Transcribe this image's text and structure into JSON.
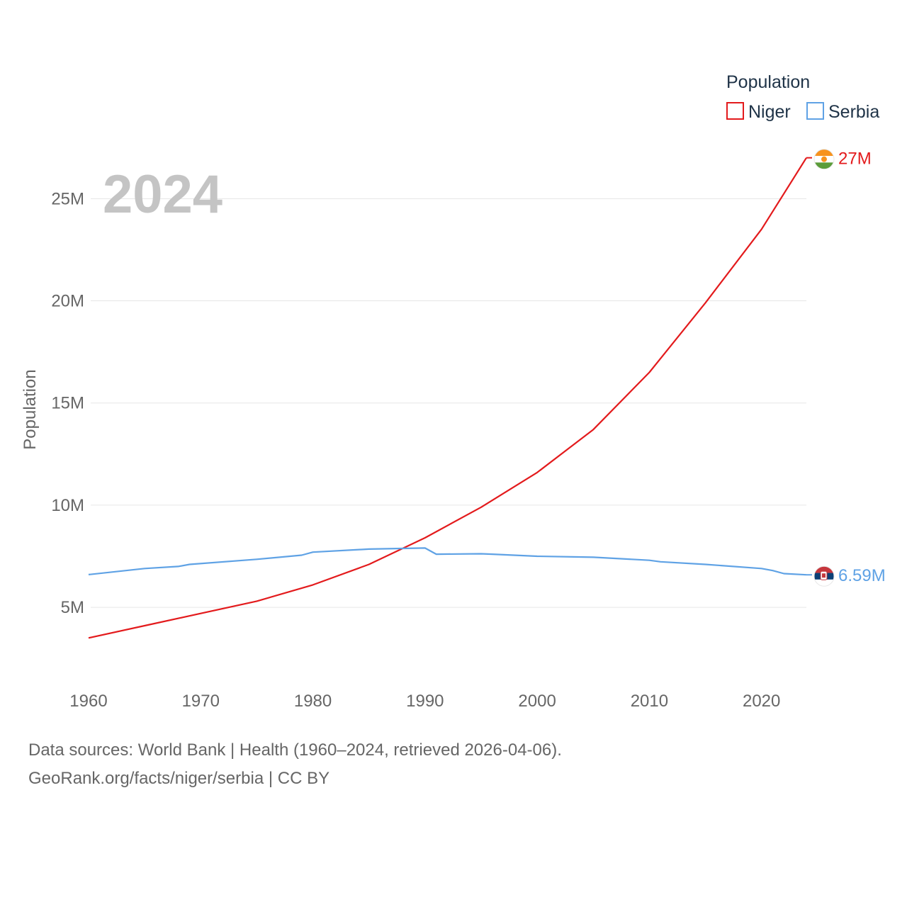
{
  "chart_data": {
    "type": "line",
    "title": "2024",
    "ylabel": "Population",
    "xlabel": "",
    "xlim": [
      1960,
      2024
    ],
    "ylim": [
      1500000,
      29000000
    ],
    "x_ticks": [
      1960,
      1970,
      1980,
      1990,
      2000,
      2010,
      2020
    ],
    "x_tick_labels": [
      "1960",
      "1970",
      "1980",
      "1990",
      "2000",
      "2010",
      "2020"
    ],
    "y_ticks": [
      5000000,
      10000000,
      15000000,
      20000000,
      25000000
    ],
    "y_tick_labels": [
      "5M",
      "10M",
      "15M",
      "20M",
      "25M"
    ],
    "grid": true,
    "legend": {
      "title": "Population",
      "position": "top-right",
      "entries": [
        "Niger",
        "Serbia"
      ]
    },
    "series": [
      {
        "name": "Niger",
        "color": "#e31a1c",
        "end_label": "27M",
        "flag": "niger-flag",
        "x": [
          1960,
          1965,
          1970,
          1975,
          1980,
          1985,
          1990,
          1995,
          2000,
          2005,
          2010,
          2015,
          2020,
          2024
        ],
        "values": [
          3500000,
          4100000,
          4700000,
          5300000,
          6100000,
          7100000,
          8400000,
          9900000,
          11600000,
          13700000,
          16500000,
          19900000,
          23500000,
          27000000
        ]
      },
      {
        "name": "Serbia",
        "color": "#5fa2e5",
        "end_label": "6.59M",
        "flag": "serbia-flag",
        "x": [
          1960,
          1965,
          1968,
          1969,
          1975,
          1979,
          1980,
          1985,
          1990,
          1991,
          1995,
          1996,
          2000,
          2005,
          2010,
          2011,
          2015,
          2020,
          2021,
          2022,
          2024
        ],
        "values": [
          6600000,
          6900000,
          7000000,
          7100000,
          7350000,
          7550000,
          7700000,
          7850000,
          7900000,
          7600000,
          7620000,
          7600000,
          7500000,
          7450000,
          7300000,
          7230000,
          7100000,
          6900000,
          6800000,
          6650000,
          6590000
        ]
      }
    ]
  },
  "footer": {
    "line1": "Data sources: World Bank | Health (1960–2024, retrieved 2026-04-06).",
    "line2": "GeoRank.org/facts/niger/serbia | CC BY"
  }
}
